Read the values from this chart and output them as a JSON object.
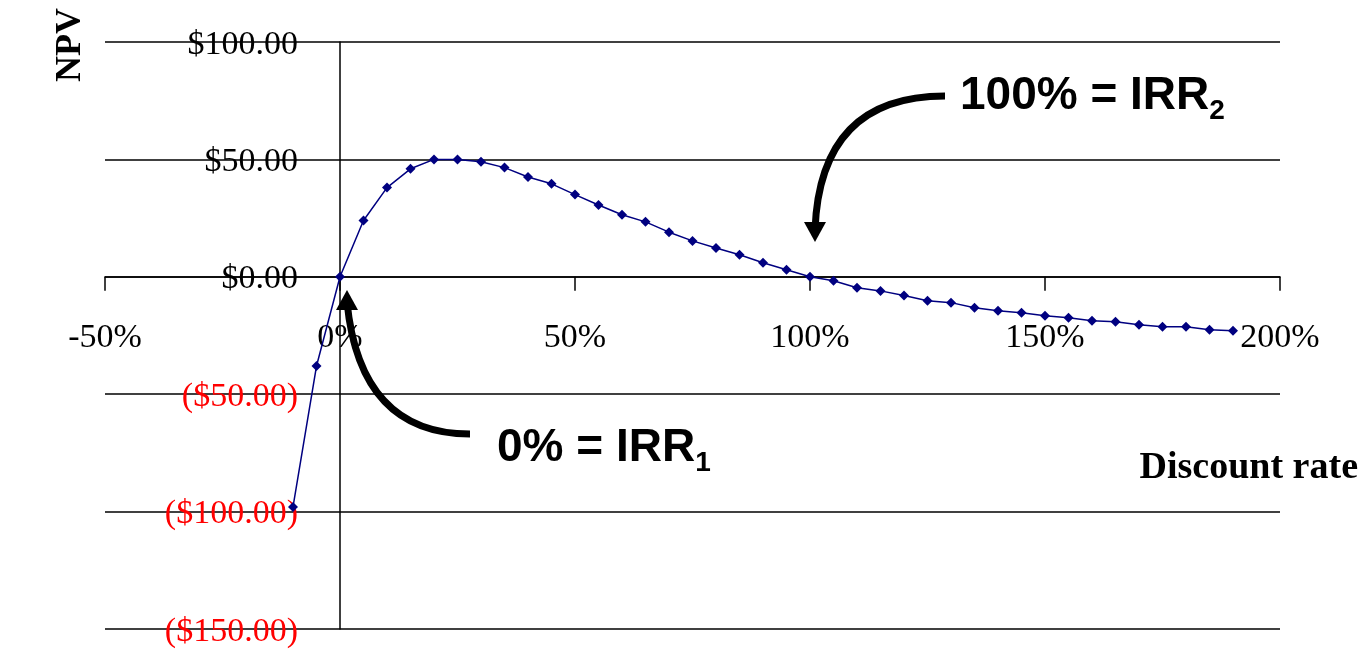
{
  "chart_data": {
    "type": "line",
    "xlabel": "Discount rate",
    "ylabel": "NPV",
    "x": [
      -10,
      -5,
      0,
      5,
      10,
      15,
      20,
      25,
      30,
      35,
      40,
      45,
      50,
      55,
      60,
      65,
      70,
      75,
      80,
      85,
      90,
      95,
      100,
      105,
      110,
      115,
      120,
      125,
      130,
      135,
      140,
      145,
      150,
      155,
      160,
      165,
      170,
      175,
      180,
      185,
      190
    ],
    "series": [
      {
        "color": "#000080",
        "values": [
          -98,
          -38,
          0,
          24,
          38,
          46,
          50,
          50,
          49,
          46.5,
          42.5,
          39.6,
          35,
          30.6,
          26.4,
          23.4,
          19,
          15.3,
          12.3,
          9.4,
          6,
          3,
          0,
          -1.7,
          -4.7,
          -6,
          -8,
          -10.2,
          -11,
          -13.2,
          -14.5,
          -15.3,
          -16.6,
          -17.4,
          -18.7,
          -19.1,
          -20.4,
          -21.3,
          -21.3,
          -22.6,
          -23
        ]
      }
    ],
    "xlim": [
      -50,
      200
    ],
    "xticks": [
      {
        "value": -50,
        "label": "-50%"
      },
      {
        "value": 0,
        "label": "0%"
      },
      {
        "value": 50,
        "label": "50%"
      },
      {
        "value": 100,
        "label": "100%"
      },
      {
        "value": 150,
        "label": "150%"
      },
      {
        "value": 200,
        "label": "200%"
      }
    ],
    "ylim": [
      -150,
      100
    ],
    "yticks": [
      {
        "value": -150,
        "label": "($150.00)"
      },
      {
        "value": -100,
        "label": "($100.00)"
      },
      {
        "value": -50,
        "label": "($50.00)"
      },
      {
        "value": 0,
        "label": "$0.00"
      },
      {
        "value": 50,
        "label": "$50.00"
      },
      {
        "value": 100,
        "label": "$100.00"
      }
    ],
    "grid": "y",
    "marker": "diamond",
    "line_style": "solid",
    "annotations": [
      "0% = IRR$_{1}$",
      "100% = IRR$_{2}$"
    ]
  }
}
